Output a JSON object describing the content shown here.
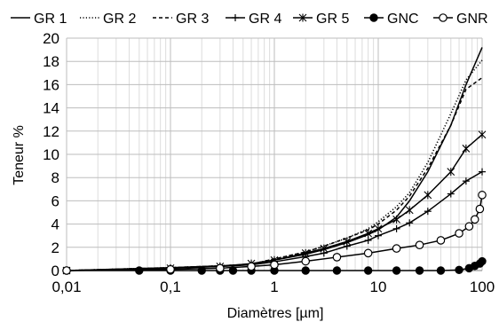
{
  "chart_data": {
    "type": "line",
    "title": "",
    "xlabel": "Diamètres [µm]",
    "ylabel": "Teneur %",
    "xscale": "log",
    "xlim": [
      0.01,
      100
    ],
    "ylim": [
      0,
      20
    ],
    "x_ticks": [
      "0,01",
      "0,1",
      "1",
      "10",
      "100"
    ],
    "y_ticks": [
      "0",
      "2",
      "4",
      "6",
      "8",
      "10",
      "12",
      "14",
      "16",
      "18",
      "20"
    ],
    "grid": true,
    "legend_position": "top",
    "series": [
      {
        "name": "GR 1",
        "style": "solid",
        "marker": "none",
        "color": "#000000",
        "points": [
          [
            0.01,
            0
          ],
          [
            0.1,
            0.25
          ],
          [
            0.3,
            0.4
          ],
          [
            0.6,
            0.55
          ],
          [
            1,
            0.9
          ],
          [
            2,
            1.4
          ],
          [
            3,
            1.8
          ],
          [
            5,
            2.4
          ],
          [
            8,
            3.1
          ],
          [
            10,
            3.5
          ],
          [
            15,
            4.6
          ],
          [
            20,
            6
          ],
          [
            30,
            8.5
          ],
          [
            50,
            12.5
          ],
          [
            70,
            16
          ],
          [
            100,
            19.2
          ]
        ]
      },
      {
        "name": "GR 2",
        "style": "dotted",
        "marker": "none",
        "color": "#000000",
        "points": [
          [
            0.01,
            0
          ],
          [
            0.1,
            0.25
          ],
          [
            0.3,
            0.4
          ],
          [
            0.6,
            0.55
          ],
          [
            1,
            1
          ],
          [
            2,
            1.6
          ],
          [
            3,
            2.1
          ],
          [
            5,
            2.8
          ],
          [
            8,
            3.6
          ],
          [
            10,
            4.2
          ],
          [
            15,
            5.5
          ],
          [
            20,
            6.7
          ],
          [
            30,
            9.3
          ],
          [
            50,
            13.5
          ],
          [
            70,
            16.4
          ],
          [
            100,
            18.1
          ]
        ]
      },
      {
        "name": "GR 3",
        "style": "dashed",
        "marker": "none",
        "color": "#000000",
        "points": [
          [
            0.01,
            0
          ],
          [
            0.1,
            0.25
          ],
          [
            0.3,
            0.4
          ],
          [
            0.6,
            0.55
          ],
          [
            1,
            1
          ],
          [
            2,
            1.6
          ],
          [
            3,
            2.1
          ],
          [
            5,
            2.8
          ],
          [
            8,
            3.5
          ],
          [
            10,
            4
          ],
          [
            15,
            5.2
          ],
          [
            20,
            6.4
          ],
          [
            30,
            8.8
          ],
          [
            50,
            12.5
          ],
          [
            70,
            15.6
          ],
          [
            100,
            16.6
          ]
        ]
      },
      {
        "name": "GR 4",
        "style": "solid",
        "marker": "plus",
        "color": "#000000",
        "points": [
          [
            0.01,
            0
          ],
          [
            0.1,
            0.2
          ],
          [
            0.3,
            0.35
          ],
          [
            0.6,
            0.5
          ],
          [
            1,
            0.75
          ],
          [
            2,
            1.2
          ],
          [
            3,
            1.5
          ],
          [
            5,
            2.1
          ],
          [
            8,
            2.6
          ],
          [
            10,
            3
          ],
          [
            15,
            3.6
          ],
          [
            20,
            4.1
          ],
          [
            30,
            5.1
          ],
          [
            50,
            6.6
          ],
          [
            70,
            7.7
          ],
          [
            100,
            8.5
          ]
        ]
      },
      {
        "name": "GR 5",
        "style": "solid",
        "marker": "star",
        "color": "#000000",
        "points": [
          [
            0.01,
            0
          ],
          [
            0.1,
            0.2
          ],
          [
            0.3,
            0.35
          ],
          [
            0.6,
            0.6
          ],
          [
            1,
            0.9
          ],
          [
            2,
            1.5
          ],
          [
            3,
            1.9
          ],
          [
            5,
            2.5
          ],
          [
            8,
            3.2
          ],
          [
            10,
            3.6
          ],
          [
            15,
            4.4
          ],
          [
            20,
            5.2
          ],
          [
            30,
            6.5
          ],
          [
            50,
            8.5
          ],
          [
            70,
            10.5
          ],
          [
            100,
            11.7
          ]
        ]
      },
      {
        "name": "GNC",
        "style": "solid",
        "marker": "filled-circle",
        "color": "#000000",
        "points": [
          [
            0.01,
            0
          ],
          [
            0.05,
            0
          ],
          [
            0.1,
            0
          ],
          [
            0.2,
            0
          ],
          [
            0.3,
            0
          ],
          [
            0.4,
            0
          ],
          [
            0.6,
            0
          ],
          [
            1,
            0
          ],
          [
            2,
            0
          ],
          [
            4,
            0
          ],
          [
            8,
            0
          ],
          [
            15,
            0
          ],
          [
            25,
            0
          ],
          [
            40,
            0
          ],
          [
            60,
            0.05
          ],
          [
            75,
            0.2
          ],
          [
            85,
            0.4
          ],
          [
            95,
            0.6
          ],
          [
            100,
            0.8
          ]
        ]
      },
      {
        "name": "GNR",
        "style": "solid",
        "marker": "open-circle",
        "color": "#000000",
        "points": [
          [
            0.01,
            0
          ],
          [
            0.1,
            0.1
          ],
          [
            0.3,
            0.2
          ],
          [
            0.6,
            0.35
          ],
          [
            1,
            0.5
          ],
          [
            2,
            0.8
          ],
          [
            4,
            1.15
          ],
          [
            8,
            1.5
          ],
          [
            15,
            1.9
          ],
          [
            25,
            2.2
          ],
          [
            40,
            2.6
          ],
          [
            60,
            3.2
          ],
          [
            75,
            3.8
          ],
          [
            85,
            4.4
          ],
          [
            95,
            5.3
          ],
          [
            100,
            6.5
          ]
        ]
      }
    ]
  }
}
